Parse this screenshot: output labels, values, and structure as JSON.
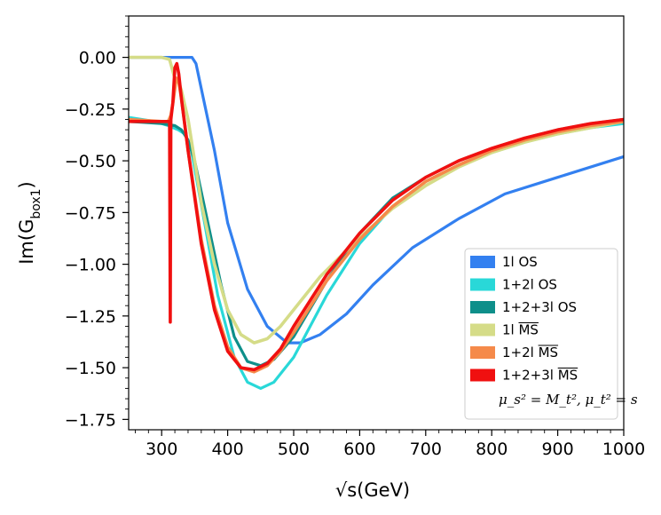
{
  "chart_data": {
    "type": "line",
    "title": "",
    "xlabel": "√s(GeV)",
    "ylabel": "Im(G_box1)",
    "xlim": [
      250,
      1000
    ],
    "ylim": [
      -1.8,
      0.2
    ],
    "grid": false,
    "legend_position": "lower-right",
    "x_ticks": [
      "300",
      "400",
      "500",
      "600",
      "700",
      "800",
      "900",
      "1000"
    ],
    "y_ticks": [
      "0.00",
      "−0.25",
      "−0.50",
      "−0.75",
      "−1.00",
      "−1.25",
      "−1.50",
      "−1.75"
    ],
    "y_tick_values": [
      0,
      -0.25,
      -0.5,
      -0.75,
      -1.0,
      -1.25,
      -1.5,
      -1.75
    ],
    "x_tick_values": [
      300,
      400,
      500,
      600,
      700,
      800,
      900,
      1000
    ],
    "annotation": "μ_s² = M_t², μ_t² = s",
    "series": [
      {
        "name": "1l OS",
        "color": "#3380f0",
        "x": [
          250,
          330,
          346,
          352,
          360,
          380,
          400,
          430,
          460,
          490,
          510,
          540,
          580,
          620,
          680,
          750,
          820,
          900,
          1000
        ],
        "y": [
          0.0,
          0.0,
          0.0,
          -0.03,
          -0.15,
          -0.45,
          -0.8,
          -1.12,
          -1.3,
          -1.38,
          -1.38,
          -1.34,
          -1.24,
          -1.1,
          -0.92,
          -0.78,
          -0.66,
          -0.58,
          -0.48
        ]
      },
      {
        "name": "1+2l OS",
        "color": "#29d8d8",
        "x": [
          250,
          290,
          310,
          325,
          335,
          345,
          365,
          385,
          410,
          430,
          450,
          470,
          500,
          550,
          600,
          650,
          700,
          750,
          800,
          850,
          900,
          950,
          1000
        ],
        "y": [
          -0.29,
          -0.31,
          -0.33,
          -0.35,
          -0.37,
          -0.45,
          -0.8,
          -1.15,
          -1.45,
          -1.57,
          -1.6,
          -1.57,
          -1.45,
          -1.15,
          -0.9,
          -0.72,
          -0.6,
          -0.52,
          -0.46,
          -0.41,
          -0.37,
          -0.34,
          -0.32
        ]
      },
      {
        "name": "1+2+3l OS",
        "color": "#0e8f8a",
        "x": [
          250,
          300,
          320,
          330,
          340,
          350,
          370,
          390,
          410,
          430,
          450,
          470,
          500,
          550,
          600,
          650,
          700,
          750,
          800,
          850,
          900,
          950,
          1000
        ],
        "y": [
          -0.31,
          -0.32,
          -0.33,
          -0.35,
          -0.4,
          -0.5,
          -0.8,
          -1.1,
          -1.35,
          -1.47,
          -1.49,
          -1.46,
          -1.35,
          -1.08,
          -0.85,
          -0.68,
          -0.58,
          -0.5,
          -0.44,
          -0.39,
          -0.35,
          -0.32,
          -0.3
        ]
      },
      {
        "name": "1l MS",
        "color": "#d5dc88",
        "x": [
          250,
          300,
          312,
          318,
          322,
          326,
          330,
          340,
          360,
          380,
          400,
          420,
          440,
          460,
          480,
          500,
          540,
          600,
          650,
          700,
          750,
          800,
          850,
          900,
          950,
          1000
        ],
        "y": [
          0.0,
          0.0,
          -0.01,
          -0.08,
          -0.12,
          -0.12,
          -0.16,
          -0.3,
          -0.7,
          -1.0,
          -1.22,
          -1.34,
          -1.38,
          -1.36,
          -1.3,
          -1.22,
          -1.06,
          -0.87,
          -0.73,
          -0.62,
          -0.53,
          -0.46,
          -0.41,
          -0.37,
          -0.34,
          -0.31
        ]
      },
      {
        "name": "1+2l MS",
        "color": "#f58a4a",
        "x": [
          250,
          300,
          310,
          314,
          318,
          322,
          326,
          330,
          340,
          360,
          380,
          400,
          420,
          440,
          460,
          480,
          500,
          550,
          600,
          650,
          700,
          750,
          800,
          850,
          900,
          950,
          1000
        ],
        "y": [
          -0.3,
          -0.31,
          -0.31,
          -0.28,
          -0.2,
          -0.1,
          -0.12,
          -0.2,
          -0.45,
          -0.88,
          -1.2,
          -1.4,
          -1.5,
          -1.52,
          -1.49,
          -1.42,
          -1.33,
          -1.08,
          -0.88,
          -0.72,
          -0.6,
          -0.52,
          -0.45,
          -0.4,
          -0.36,
          -0.33,
          -0.31
        ]
      },
      {
        "name": "1+2+3l MS",
        "color": "#f01010",
        "x": [
          250,
          300,
          312,
          313,
          314,
          317,
          320,
          323,
          326,
          330,
          340,
          360,
          380,
          400,
          420,
          440,
          460,
          480,
          500,
          550,
          600,
          650,
          700,
          750,
          800,
          850,
          900,
          950,
          1000
        ],
        "y": [
          -0.31,
          -0.31,
          -0.31,
          -1.28,
          -0.3,
          -0.22,
          -0.05,
          -0.03,
          -0.08,
          -0.2,
          -0.45,
          -0.9,
          -1.22,
          -1.42,
          -1.5,
          -1.51,
          -1.48,
          -1.41,
          -1.3,
          -1.05,
          -0.85,
          -0.69,
          -0.58,
          -0.5,
          -0.44,
          -0.39,
          -0.35,
          -0.32,
          -0.3
        ]
      }
    ],
    "legend_labels": [
      {
        "prefix": "1l ",
        "overline": "OS",
        "is_bar": false
      },
      {
        "prefix": "1+2l ",
        "overline": "OS",
        "is_bar": false
      },
      {
        "prefix": "1+2+3l ",
        "overline": "OS",
        "is_bar": false
      },
      {
        "prefix": "1l ",
        "overline": "MS",
        "is_bar": true
      },
      {
        "prefix": "1+2l ",
        "overline": "MS",
        "is_bar": true
      },
      {
        "prefix": "1+2+3l ",
        "overline": "MS",
        "is_bar": true
      }
    ]
  }
}
